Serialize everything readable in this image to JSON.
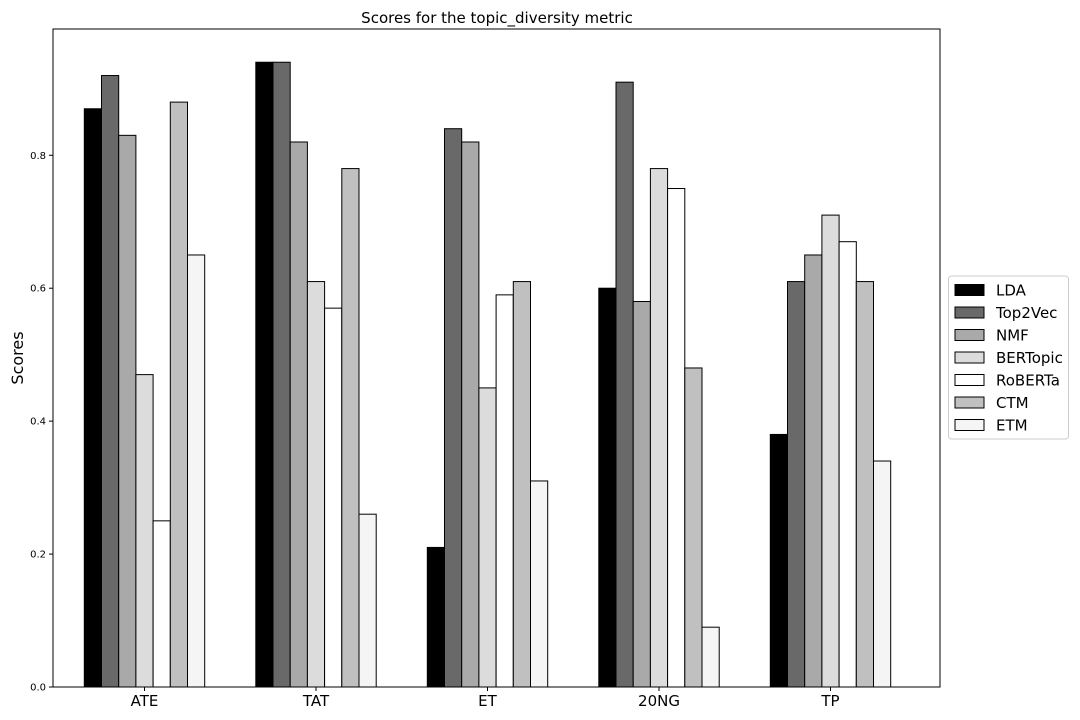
{
  "chart_data": {
    "type": "bar",
    "title": "Scores for the topic_diversity metric",
    "xlabel": "",
    "ylabel": "Scores",
    "ylim": [
      0.0,
      0.99
    ],
    "yticks": [
      "0.0",
      "0.2",
      "0.4",
      "0.6",
      "0.8"
    ],
    "grid": false,
    "legend_position": "right",
    "categories": [
      "ATE",
      "TAT",
      "ET",
      "20NG",
      "TP"
    ],
    "series": [
      {
        "name": "LDA",
        "color": "#000000",
        "values": [
          0.87,
          0.94,
          0.21,
          0.6,
          0.38
        ]
      },
      {
        "name": "Top2Vec",
        "color": "#696969",
        "values": [
          0.92,
          0.94,
          0.84,
          0.91,
          0.61
        ]
      },
      {
        "name": "NMF",
        "color": "#a9a9a9",
        "values": [
          0.83,
          0.82,
          0.82,
          0.58,
          0.65
        ]
      },
      {
        "name": "BERTopic",
        "color": "#dcdcdc",
        "values": [
          0.47,
          0.61,
          0.45,
          0.78,
          0.71
        ]
      },
      {
        "name": "RoBERTa",
        "color": "#ffffff",
        "values": [
          0.25,
          0.57,
          0.59,
          0.75,
          0.67
        ]
      },
      {
        "name": "CTM",
        "color": "#c0c0c0",
        "values": [
          0.88,
          0.78,
          0.61,
          0.48,
          0.61
        ]
      },
      {
        "name": "ETM",
        "color": "#f5f5f5",
        "values": [
          0.65,
          0.26,
          0.31,
          0.09,
          0.34
        ]
      }
    ]
  }
}
